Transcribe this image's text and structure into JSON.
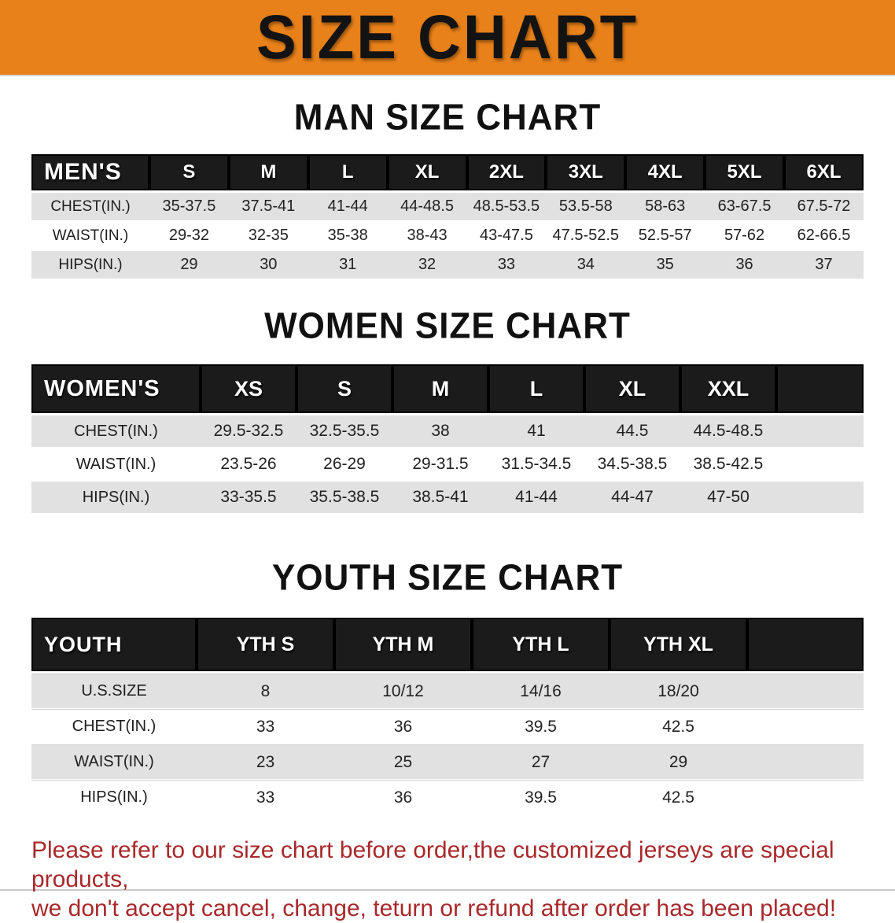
{
  "banner": {
    "title": "SIZE CHART"
  },
  "colors": {
    "banner_bg": "#E8811A",
    "header_bar": "#1B1B1B",
    "row_alt_gray": "#E1E1E2",
    "disclaimer_red": "#A8292B"
  },
  "sections": [
    {
      "heading": "MAN SIZE CHART",
      "table": {
        "corner_label": "MEN'S",
        "columns": [
          "S",
          "M",
          "L",
          "XL",
          "2XL",
          "3XL",
          "4XL",
          "5XL",
          "6XL"
        ],
        "rows": [
          {
            "label": "CHEST(IN.)",
            "values": [
              "35-37.5",
              "37.5-41",
              "41-44",
              "44-48.5",
              "48.5-53.5",
              "53.5-58",
              "58-63",
              "63-67.5",
              "67.5-72"
            ]
          },
          {
            "label": "WAIST(IN.)",
            "values": [
              "29-32",
              "32-35",
              "35-38",
              "38-43",
              "43-47.5",
              "47.5-52.5",
              "52.5-57",
              "57-62",
              "62-66.5"
            ]
          },
          {
            "label": "HIPS(IN.)",
            "values": [
              "29",
              "30",
              "31",
              "32",
              "33",
              "34",
              "35",
              "36",
              "37"
            ]
          }
        ]
      }
    },
    {
      "heading": "WOMEN SIZE CHART",
      "table": {
        "corner_label": "WOMEN'S",
        "columns": [
          "XS",
          "S",
          "M",
          "L",
          "XL",
          "XXL"
        ],
        "rows": [
          {
            "label": "CHEST(IN.)",
            "values": [
              "29.5-32.5",
              "32.5-35.5",
              "38",
              "41",
              "44.5",
              "44.5-48.5"
            ]
          },
          {
            "label": "WAIST(IN.)",
            "values": [
              "23.5-26",
              "26-29",
              "29-31.5",
              "31.5-34.5",
              "34.5-38.5",
              "38.5-42.5"
            ]
          },
          {
            "label": "HIPS(IN.)",
            "values": [
              "33-35.5",
              "35.5-38.5",
              "38.5-41",
              "41-44",
              "44-47",
              "47-50"
            ]
          }
        ]
      }
    },
    {
      "heading": "YOUTH SIZE CHART",
      "table": {
        "corner_label": "YOUTH",
        "columns": [
          "YTH S",
          "YTH M",
          "YTH L",
          "YTH XL"
        ],
        "rows": [
          {
            "label": "U.S.SIZE",
            "values": [
              "8",
              "10/12",
              "14/16",
              "18/20"
            ]
          },
          {
            "label": "CHEST(IN.)",
            "values": [
              "33",
              "36",
              "39.5",
              "42.5"
            ]
          },
          {
            "label": "WAIST(IN.)",
            "values": [
              "23",
              "25",
              "27",
              "29"
            ]
          },
          {
            "label": "HIPS(IN.)",
            "values": [
              "33",
              "36",
              "39.5",
              "42.5"
            ]
          }
        ]
      }
    }
  ],
  "disclaimer": {
    "line1": "Please refer to our size chart before order,the customized jerseys are special products,",
    "line2": "we don't accept cancel, change, teturn or refund after order has been placed!"
  }
}
